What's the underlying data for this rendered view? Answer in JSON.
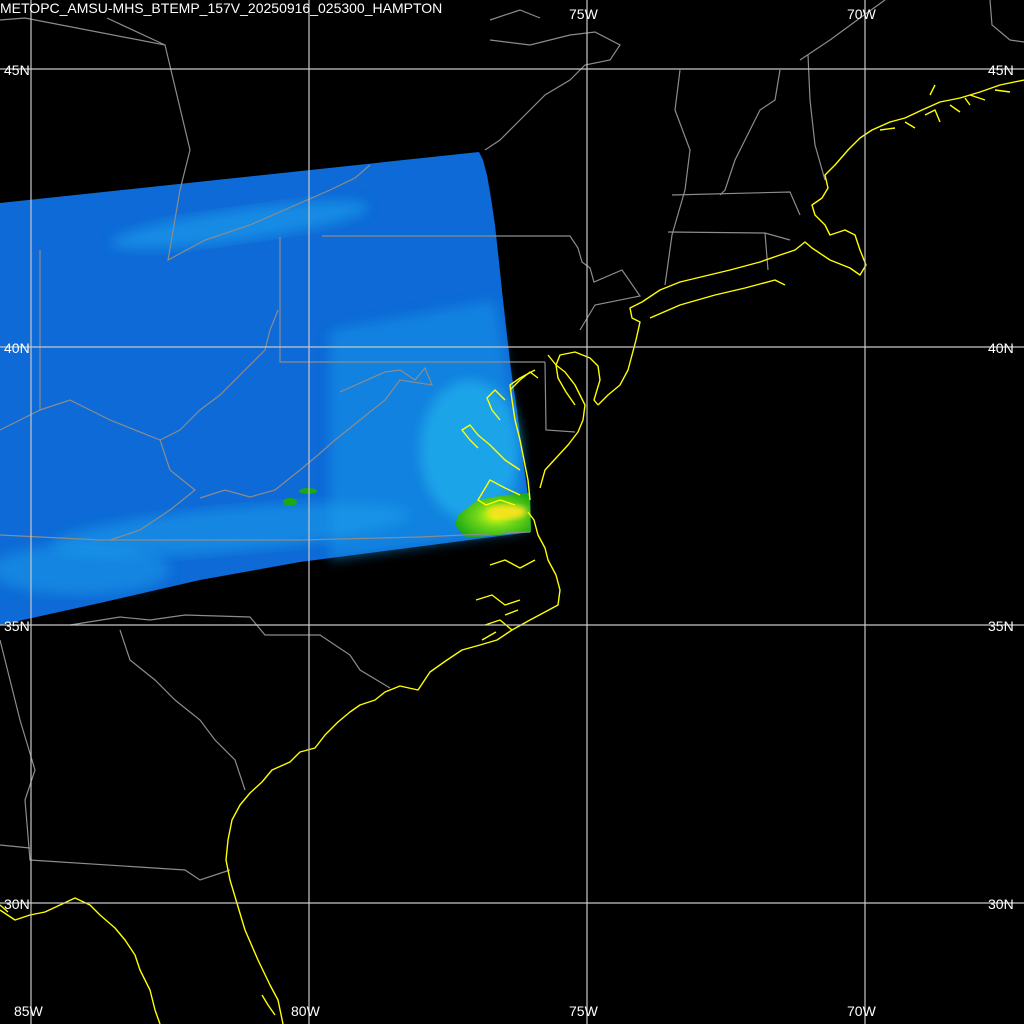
{
  "title": "METOPC_AMSU-MHS_BTEMP_157V_20250916_025300_HAMPTON",
  "grid_labels": {
    "lon_top": [
      "75W",
      "70W"
    ],
    "lon_bottom": [
      "85W",
      "80W",
      "75W",
      "70W"
    ],
    "lat_left": [
      "45N",
      "40N",
      "35N",
      "30N"
    ],
    "lat_right": [
      "45N",
      "40N",
      "35N",
      "30N"
    ]
  },
  "colors": {
    "background": "#000000",
    "grid": "#c8c8c8",
    "coastline": "#ffff00",
    "borders": "#8c8c8c",
    "swath": "#0a64d2",
    "swath_light": "#1ea0f0",
    "warm_spot": "#22c018",
    "hot_spot": "#e6ff00"
  }
}
